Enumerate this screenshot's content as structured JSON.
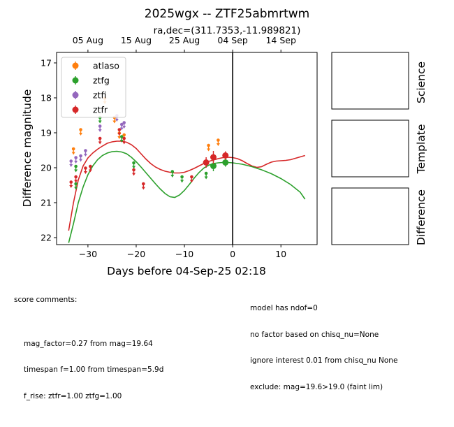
{
  "figure": {
    "title": "2025wgx -- ZTF25abmrtwm",
    "subtitle": "ra,dec=(311.7353,-11.989821)"
  },
  "chart_data": {
    "type": "scatter",
    "xlabel": "Days before 04-Sep-25 02:18",
    "ylabel": "Difference magnitude",
    "xlim": [
      -36.5,
      17.5
    ],
    "ylim": [
      22.2,
      16.7
    ],
    "y_inverted": true,
    "x_ticks": [
      -30,
      -20,
      -10,
      0,
      10
    ],
    "x_tick_labels": [
      "−30",
      "−20",
      "−10",
      "0",
      "10"
    ],
    "y_ticks": [
      17,
      18,
      19,
      20,
      21,
      22
    ],
    "top_ticks": [
      -30,
      -20,
      -10,
      0,
      10
    ],
    "top_tick_labels": [
      "05 Aug",
      "15 Aug",
      "25 Aug",
      "04 Sep",
      "14 Sep"
    ],
    "vline_x": 0,
    "legend_position": "upper-left",
    "series": [
      {
        "name": "atlaso",
        "color": "#ff7f0e",
        "kind": "upper_limit",
        "points": [
          [
            -33,
            19.5
          ],
          [
            -31.5,
            18.95
          ],
          [
            -26.5,
            18.05
          ],
          [
            -24.5,
            18.6
          ],
          [
            -23.5,
            19.05
          ],
          [
            -22.5,
            19.1
          ],
          [
            -5,
            19.4
          ],
          [
            -3,
            19.25
          ]
        ]
      },
      {
        "name": "ztfg",
        "color": "#2ca02c",
        "kind": "mixed",
        "points": [
          [
            -32.5,
            20.0
          ],
          [
            -32.5,
            20.5
          ],
          [
            -27.5,
            18.6
          ],
          [
            -23,
            19.15
          ],
          [
            -20.5,
            19.9
          ],
          [
            -12.5,
            20.15
          ],
          [
            -10.5,
            20.3
          ],
          [
            -5.5,
            20.2
          ]
        ],
        "detections": [
          [
            -4,
            19.95,
            0.15
          ],
          [
            -1.5,
            19.85,
            0.12
          ]
        ]
      },
      {
        "name": "ztfi",
        "color": "#9467bd",
        "kind": "upper_limit",
        "points": [
          [
            -33.5,
            19.85
          ],
          [
            -32.5,
            19.75
          ],
          [
            -31.5,
            19.7
          ],
          [
            -30.5,
            19.55
          ],
          [
            -27.5,
            18.85
          ],
          [
            -24,
            18.55
          ],
          [
            -23,
            18.8
          ],
          [
            -22.5,
            18.75
          ]
        ]
      },
      {
        "name": "ztfr",
        "color": "#d62728",
        "kind": "mixed",
        "points": [
          [
            -33.5,
            20.45
          ],
          [
            -32.5,
            20.3
          ],
          [
            -30.5,
            20.05
          ],
          [
            -29.5,
            20.0
          ],
          [
            -27.5,
            19.2
          ],
          [
            -23.5,
            18.95
          ],
          [
            -22.5,
            19.2
          ],
          [
            -20.5,
            20.1
          ],
          [
            -18.5,
            20.5
          ],
          [
            -8.5,
            20.3
          ]
        ],
        "detections": [
          [
            -5.5,
            19.85,
            0.15
          ],
          [
            -4,
            19.7,
            0.18
          ],
          [
            -1.5,
            19.65,
            0.12
          ]
        ]
      }
    ],
    "model_curves": [
      {
        "color": "#d62728",
        "points": [
          [
            -34,
            21.8
          ],
          [
            -33,
            21.0
          ],
          [
            -32,
            20.35
          ],
          [
            -31,
            19.95
          ],
          [
            -30,
            19.72
          ],
          [
            -29,
            19.58
          ],
          [
            -28,
            19.47
          ],
          [
            -27,
            19.38
          ],
          [
            -26,
            19.3
          ],
          [
            -25,
            19.26
          ],
          [
            -24,
            19.24
          ],
          [
            -23,
            19.24
          ],
          [
            -22,
            19.27
          ],
          [
            -21,
            19.34
          ],
          [
            -20,
            19.45
          ],
          [
            -19,
            19.6
          ],
          [
            -18,
            19.75
          ],
          [
            -17,
            19.88
          ],
          [
            -16,
            19.98
          ],
          [
            -15,
            20.05
          ],
          [
            -14,
            20.1
          ],
          [
            -13,
            20.13
          ],
          [
            -12,
            20.15
          ],
          [
            -11,
            20.15
          ],
          [
            -10,
            20.13
          ],
          [
            -9,
            20.08
          ],
          [
            -8,
            20.02
          ],
          [
            -7,
            19.95
          ],
          [
            -6,
            19.88
          ],
          [
            -5,
            19.82
          ],
          [
            -4,
            19.78
          ],
          [
            -3,
            19.74
          ],
          [
            -2,
            19.71
          ],
          [
            -1,
            19.7
          ],
          [
            0,
            19.71
          ],
          [
            1,
            19.74
          ],
          [
            2,
            19.8
          ],
          [
            3,
            19.88
          ],
          [
            4,
            19.95
          ],
          [
            5,
            19.99
          ],
          [
            6,
            19.97
          ],
          [
            7,
            19.9
          ],
          [
            8,
            19.84
          ],
          [
            9,
            19.81
          ],
          [
            10,
            19.8
          ],
          [
            11,
            19.79
          ],
          [
            12,
            19.77
          ],
          [
            13,
            19.73
          ],
          [
            14,
            19.69
          ],
          [
            15,
            19.65
          ]
        ]
      },
      {
        "color": "#2ca02c",
        "points": [
          [
            -34,
            22.15
          ],
          [
            -33,
            21.6
          ],
          [
            -32,
            21.0
          ],
          [
            -31,
            20.55
          ],
          [
            -30,
            20.2
          ],
          [
            -29,
            19.95
          ],
          [
            -28,
            19.77
          ],
          [
            -27,
            19.65
          ],
          [
            -26,
            19.58
          ],
          [
            -25,
            19.54
          ],
          [
            -24,
            19.53
          ],
          [
            -23,
            19.55
          ],
          [
            -22,
            19.6
          ],
          [
            -21,
            19.7
          ],
          [
            -20,
            19.83
          ],
          [
            -19,
            19.98
          ],
          [
            -18,
            20.14
          ],
          [
            -17,
            20.3
          ],
          [
            -16,
            20.46
          ],
          [
            -15,
            20.61
          ],
          [
            -14,
            20.74
          ],
          [
            -13,
            20.83
          ],
          [
            -12,
            20.85
          ],
          [
            -11,
            20.78
          ],
          [
            -10,
            20.65
          ],
          [
            -9,
            20.48
          ],
          [
            -8,
            20.3
          ],
          [
            -7,
            20.14
          ],
          [
            -6,
            20.01
          ],
          [
            -5,
            19.93
          ],
          [
            -4,
            19.88
          ],
          [
            -3,
            19.86
          ],
          [
            -2,
            19.85
          ],
          [
            -1,
            19.85
          ],
          [
            0,
            19.86
          ],
          [
            2,
            19.9
          ],
          [
            4,
            19.97
          ],
          [
            6,
            20.06
          ],
          [
            8,
            20.17
          ],
          [
            10,
            20.31
          ],
          [
            12,
            20.48
          ],
          [
            14,
            20.7
          ],
          [
            15,
            20.9
          ]
        ]
      }
    ]
  },
  "side_panels": [
    "Science",
    "Template",
    "Difference"
  ],
  "comments_left": {
    "header": "score comments:",
    "lines": [
      "mag_factor=0.27 from mag=19.64",
      "timespan f=1.00 from timespan=5.9d",
      "f_rise: ztfr=1.00 ztfg=1.00"
    ]
  },
  "comments_right": [
    "model has ndof=0",
    "no factor based on chisq_nu=None",
    "ignore interest 0.01 from chisq_nu None",
    "exclude: mag=19.6>19.0 (faint lim)"
  ]
}
